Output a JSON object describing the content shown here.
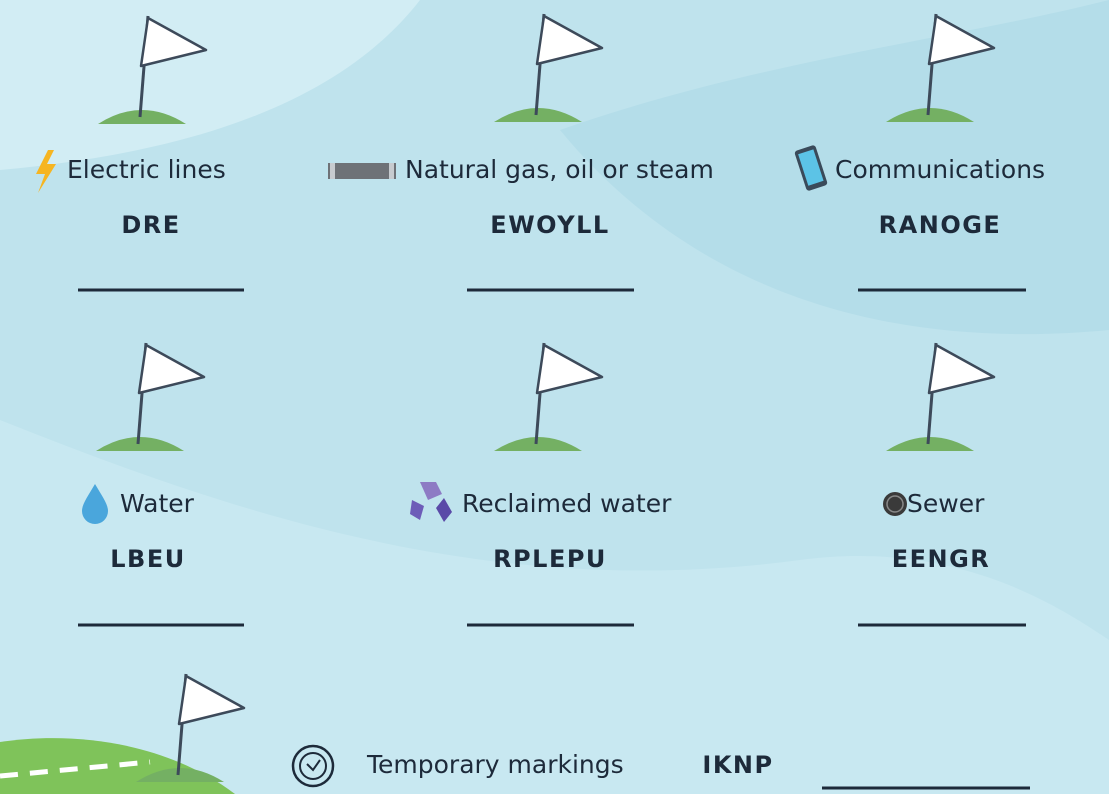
{
  "items": [
    {
      "label": "Electric lines",
      "scrambled": "DRE"
    },
    {
      "label": "Natural gas, oil or steam",
      "scrambled": "EWOYLL"
    },
    {
      "label": "Communications",
      "scrambled": "RANOGE"
    },
    {
      "label": "Water",
      "scrambled": "LBEU"
    },
    {
      "label": "Reclaimed water",
      "scrambled": "RPLEPU"
    },
    {
      "label": "Sewer",
      "scrambled": "EENGR"
    },
    {
      "label": "Temporary markings",
      "scrambled": "IKNP"
    }
  ]
}
